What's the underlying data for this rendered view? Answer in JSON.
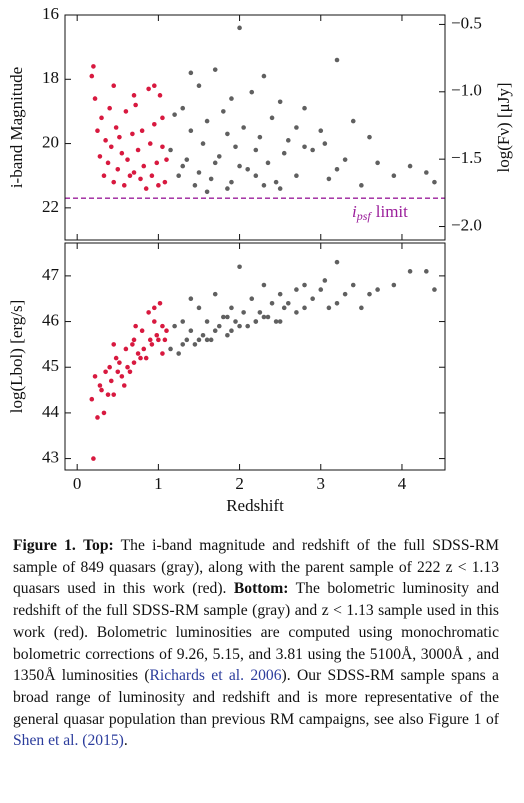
{
  "chart_data": [
    {
      "type": "scatter",
      "ylabel": "i-band Magnitude",
      "y2label": "log(Fν) [μJy]",
      "xlim": [
        -0.15,
        4.53
      ],
      "xticks": [
        0,
        1,
        2,
        3,
        4
      ],
      "show_xtick_labels": false,
      "ylim": [
        23,
        16
      ],
      "yticks": [
        16,
        18,
        20,
        22
      ],
      "y2lim": [
        -2.1,
        -0.43
      ],
      "y2ticks": [
        {
          "value": -0.5,
          "label": "−0.5"
        },
        {
          "value": -1.0,
          "label": "−1.0"
        },
        {
          "value": -1.5,
          "label": "−1.5"
        },
        {
          "value": -2.0,
          "label": "−2.0"
        }
      ],
      "hline": 21.7,
      "hline_color": "#9b1f9b",
      "annotation": {
        "symbol": "i",
        "subscript": "psf",
        "text": "limit",
        "color": "#9b1f9b"
      },
      "series": [
        {
          "color": "#606060",
          "x": [
            1.15,
            1.2,
            1.25,
            1.3,
            1.35,
            1.4,
            1.45,
            1.5,
            1.55,
            1.6,
            1.65,
            1.7,
            1.75,
            1.8,
            1.85,
            1.9,
            1.95,
            2.0,
            2.05,
            2.1,
            2.15,
            2.2,
            2.25,
            2.3,
            2.35,
            2.4,
            2.45,
            2.5,
            2.55,
            2.6,
            2.7,
            2.8,
            2.9,
            3.0,
            3.1,
            3.2,
            3.3,
            3.4,
            3.5,
            3.6,
            3.7,
            3.9,
            4.1,
            4.3,
            4.4,
            1.3,
            1.5,
            1.7,
            1.9,
            2.2,
            2.5,
            2.8,
            3.2,
            1.4,
            1.6,
            1.85,
            2.0,
            2.3,
            2.7,
            3.05
          ],
          "values": [
            20.2,
            19.1,
            21.0,
            18.9,
            20.5,
            19.6,
            21.3,
            18.2,
            20.0,
            19.3,
            21.1,
            17.7,
            20.4,
            19.0,
            21.4,
            18.6,
            20.1,
            16.4,
            19.5,
            20.8,
            18.4,
            21.0,
            19.8,
            17.9,
            20.6,
            19.2,
            21.2,
            18.7,
            20.3,
            19.9,
            21.0,
            18.9,
            20.2,
            19.6,
            21.1,
            17.4,
            20.5,
            19.3,
            21.3,
            19.8,
            20.6,
            21.0,
            20.7,
            20.9,
            21.2,
            20.7,
            20.9,
            20.6,
            21.2,
            20.2,
            21.4,
            20.1,
            20.8,
            17.8,
            21.5,
            19.7,
            20.7,
            21.3,
            19.5,
            20.0
          ]
        },
        {
          "color": "#d8193f",
          "x": [
            0.18,
            0.22,
            0.25,
            0.28,
            0.3,
            0.33,
            0.35,
            0.38,
            0.4,
            0.42,
            0.45,
            0.48,
            0.5,
            0.52,
            0.55,
            0.58,
            0.6,
            0.62,
            0.65,
            0.68,
            0.7,
            0.72,
            0.75,
            0.78,
            0.8,
            0.82,
            0.85,
            0.88,
            0.9,
            0.92,
            0.95,
            0.98,
            1.0,
            1.02,
            1.05,
            1.08,
            1.1,
            0.2,
            0.45,
            0.7,
            0.95,
            1.05
          ],
          "values": [
            17.9,
            18.6,
            19.6,
            20.4,
            19.2,
            21.0,
            19.9,
            20.6,
            18.9,
            20.1,
            21.2,
            19.5,
            20.8,
            19.8,
            20.3,
            21.3,
            19.0,
            20.5,
            21.0,
            19.7,
            20.9,
            18.8,
            20.2,
            21.1,
            19.6,
            20.7,
            21.4,
            18.3,
            20.0,
            21.0,
            19.4,
            20.6,
            21.3,
            18.5,
            20.1,
            21.2,
            20.5,
            17.6,
            18.2,
            18.5,
            18.2,
            19.2
          ]
        }
      ]
    },
    {
      "type": "scatter",
      "xlabel": "Redshift",
      "ylabel": "log(Lbol) [erg/s]",
      "xlim": [
        -0.15,
        4.53
      ],
      "xticks": [
        0,
        1,
        2,
        3,
        4
      ],
      "show_xtick_labels": true,
      "ylim": [
        42.75,
        47.72
      ],
      "yticks": [
        43,
        44,
        45,
        46,
        47
      ],
      "series": [
        {
          "color": "#606060",
          "x": [
            1.15,
            1.2,
            1.25,
            1.3,
            1.35,
            1.4,
            1.45,
            1.5,
            1.55,
            1.6,
            1.65,
            1.7,
            1.75,
            1.8,
            1.85,
            1.9,
            1.95,
            2.0,
            2.05,
            2.1,
            2.15,
            2.2,
            2.25,
            2.3,
            2.35,
            2.4,
            2.45,
            2.5,
            2.55,
            2.6,
            2.7,
            2.8,
            2.9,
            3.0,
            3.1,
            3.2,
            3.3,
            3.4,
            3.5,
            3.6,
            3.7,
            3.9,
            4.1,
            4.3,
            4.4,
            1.3,
            1.5,
            1.7,
            1.9,
            2.2,
            2.5,
            2.8,
            3.2,
            1.4,
            1.6,
            1.85,
            2.0,
            2.3,
            2.7,
            3.05
          ],
          "values": [
            45.4,
            45.9,
            45.3,
            46.0,
            45.6,
            45.8,
            45.5,
            46.3,
            45.7,
            46.0,
            45.6,
            46.6,
            45.9,
            46.1,
            45.7,
            46.3,
            46.0,
            47.2,
            46.2,
            45.9,
            46.5,
            46.0,
            46.2,
            46.8,
            46.1,
            46.4,
            46.0,
            46.6,
            46.3,
            46.4,
            46.2,
            46.8,
            46.5,
            46.7,
            46.3,
            47.3,
            46.6,
            46.8,
            46.3,
            46.6,
            46.7,
            46.8,
            47.1,
            47.1,
            46.7,
            45.5,
            45.6,
            45.8,
            45.8,
            46.0,
            46.0,
            46.3,
            46.4,
            46.5,
            45.6,
            46.1,
            45.9,
            46.1,
            46.7,
            46.9
          ]
        },
        {
          "color": "#d8193f",
          "x": [
            0.18,
            0.22,
            0.25,
            0.28,
            0.3,
            0.33,
            0.35,
            0.38,
            0.4,
            0.42,
            0.45,
            0.48,
            0.5,
            0.52,
            0.55,
            0.58,
            0.6,
            0.62,
            0.65,
            0.68,
            0.7,
            0.72,
            0.75,
            0.78,
            0.8,
            0.82,
            0.85,
            0.88,
            0.9,
            0.92,
            0.95,
            0.98,
            1.0,
            1.02,
            1.05,
            1.08,
            1.1,
            0.2,
            0.45,
            0.7,
            0.95,
            1.05
          ],
          "values": [
            44.3,
            44.8,
            43.9,
            44.6,
            44.5,
            44.0,
            44.9,
            44.4,
            45.0,
            44.7,
            44.4,
            45.2,
            44.9,
            45.1,
            44.8,
            44.6,
            45.4,
            45.0,
            44.9,
            45.5,
            45.1,
            45.9,
            45.3,
            45.2,
            45.8,
            45.4,
            45.2,
            46.2,
            45.6,
            45.5,
            46.0,
            45.7,
            45.6,
            46.4,
            45.9,
            45.6,
            45.8,
            43.0,
            45.5,
            45.6,
            46.3,
            45.3
          ]
        }
      ]
    }
  ],
  "caption": {
    "label": "Figure 1.",
    "top_label": "Top:",
    "top_text": "The i-band magnitude and redshift of the full SDSS-RM sample of 849 quasars (gray), along with the parent sample of 222 z < 1.13 quasars used in this work (red).",
    "bottom_label": "Bottom:",
    "bottom_text": "The bolometric luminosity and redshift of the full SDSS-RM sample (gray) and z < 1.13 sample used in this work (red). Bolometric luminosities are computed using monochromatic bolometric corrections of 9.26, 5.15, and 3.81 using the 5100Å, 3000Å , and 1350Å luminosities (",
    "ref1": "Richards et al. 2006",
    "text2": "). Our SDSS-RM sample spans a broad range of luminosity and redshift and is more representative of the general quasar population than previous RM campaigns, see also Figure 1 of",
    "ref2": "Shen et al. (2015)",
    "text3": "."
  }
}
